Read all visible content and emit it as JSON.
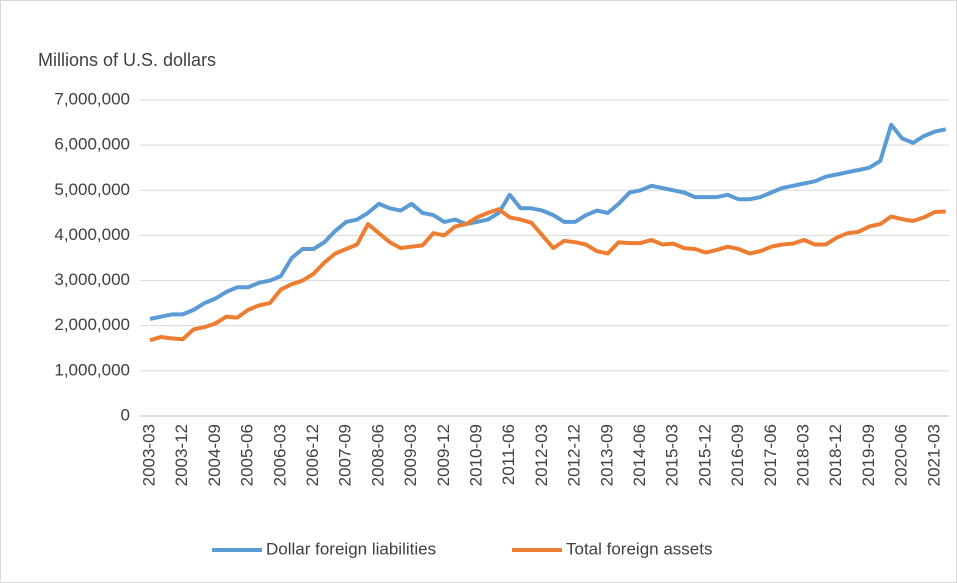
{
  "chart_data": {
    "type": "line",
    "y_axis_title": "Millions of U.S. dollars",
    "categories": [
      "2003-03",
      null,
      null,
      "2003-12",
      null,
      null,
      "2004-09",
      null,
      null,
      "2005-06",
      null,
      null,
      "2006-03",
      null,
      null,
      "2006-12",
      null,
      null,
      "2007-09",
      null,
      null,
      "2008-06",
      null,
      null,
      "2009-03",
      null,
      null,
      "2009-12",
      null,
      null,
      "2010-09",
      null,
      null,
      "2011-06",
      null,
      null,
      "2012-03",
      null,
      null,
      "2012-12",
      null,
      null,
      "2013-09",
      null,
      null,
      "2014-06",
      null,
      null,
      "2015-03",
      null,
      null,
      "2015-12",
      null,
      null,
      "2016-09",
      null,
      null,
      "2017-06",
      null,
      null,
      "2018-03",
      null,
      null,
      "2018-12",
      null,
      null,
      "2019-09",
      null,
      null,
      "2020-06",
      null,
      null,
      "2021-03",
      null
    ],
    "series": [
      {
        "name": "Dollar foreign liabilities",
        "color": "#5b9bd5",
        "values": [
          2150000,
          2200000,
          2250000,
          2250000,
          2350000,
          2500000,
          2600000,
          2750000,
          2850000,
          2850000,
          2950000,
          3000000,
          3100000,
          3500000,
          3700000,
          3700000,
          3850000,
          4100000,
          4300000,
          4350000,
          4500000,
          4700000,
          4600000,
          4550000,
          4700000,
          4500000,
          4450000,
          4300000,
          4350000,
          4250000,
          4300000,
          4350000,
          4500000,
          4900000,
          4600000,
          4600000,
          4550000,
          4450000,
          4300000,
          4300000,
          4450000,
          4550000,
          4500000,
          4700000,
          4950000,
          5000000,
          5100000,
          5050000,
          5000000,
          4950000,
          4850000,
          4850000,
          4850000,
          4900000,
          4800000,
          4800000,
          4850000,
          4950000,
          5050000,
          5100000,
          5150000,
          5200000,
          5300000,
          5350000,
          5400000,
          5450000,
          5500000,
          5650000,
          6450000,
          6150000,
          6050000,
          6200000,
          6300000,
          6350000
        ]
      },
      {
        "name": "Total foreign assets",
        "color": "#ed7d31",
        "values": [
          1680000,
          1750000,
          1720000,
          1700000,
          1920000,
          1970000,
          2050000,
          2200000,
          2180000,
          2350000,
          2450000,
          2500000,
          2800000,
          2920000,
          3000000,
          3150000,
          3400000,
          3600000,
          3700000,
          3800000,
          4250000,
          4050000,
          3850000,
          3720000,
          3750000,
          3780000,
          4050000,
          4000000,
          4200000,
          4250000,
          4400000,
          4500000,
          4580000,
          4400000,
          4350000,
          4280000,
          4000000,
          3720000,
          3880000,
          3850000,
          3800000,
          3650000,
          3600000,
          3850000,
          3830000,
          3830000,
          3900000,
          3800000,
          3820000,
          3720000,
          3700000,
          3620000,
          3680000,
          3750000,
          3700000,
          3600000,
          3650000,
          3750000,
          3800000,
          3820000,
          3900000,
          3800000,
          3800000,
          3950000,
          4050000,
          4080000,
          4200000,
          4250000,
          4420000,
          4360000,
          4320000,
          4400000,
          4520000,
          4530000
        ]
      }
    ],
    "ylim": [
      0,
      7000000
    ],
    "yticks": [
      0,
      {
        "value": 1000000,
        "label": "1,000,000"
      },
      {
        "value": 2000000,
        "label": "2,000,000"
      },
      {
        "value": 3000000,
        "label": "3,000,000"
      },
      {
        "value": 4000000,
        "label": "4,000,000"
      },
      {
        "value": 5000000,
        "label": "5,000,000"
      },
      {
        "value": 6000000,
        "label": "6,000,000"
      },
      {
        "value": 7000000,
        "label": "7,000,000"
      }
    ],
    "grid": true,
    "legend": "bottom"
  }
}
